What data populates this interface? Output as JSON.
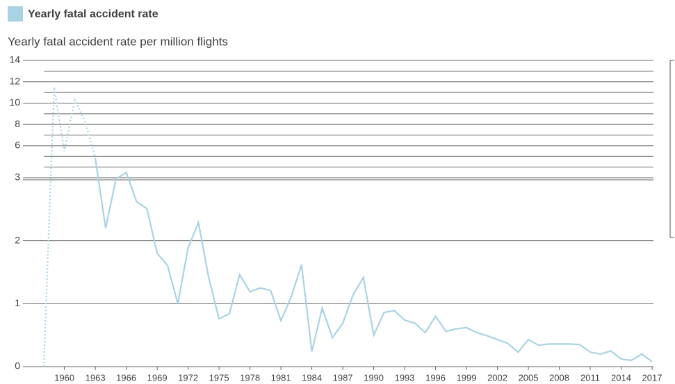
{
  "chart_data": {
    "type": "line",
    "legend_title": "Yearly fatal accident rate",
    "ylabel": "Yearly fatal accident rate per million flights",
    "x": [
      1958,
      1959,
      1960,
      1961,
      1962,
      1963,
      1964,
      1965,
      1966,
      1967,
      1968,
      1969,
      1970,
      1971,
      1972,
      1973,
      1974,
      1975,
      1976,
      1977,
      1978,
      1979,
      1980,
      1981,
      1982,
      1983,
      1984,
      1985,
      1986,
      1987,
      1988,
      1989,
      1990,
      1991,
      1992,
      1993,
      1994,
      1995,
      1996,
      1997,
      1998,
      1999,
      2000,
      2001,
      2002,
      2003,
      2004,
      2005,
      2006,
      2007,
      2008,
      2009,
      2010,
      2011,
      2012,
      2013,
      2014,
      2015,
      2016,
      2017
    ],
    "series": [
      {
        "name": "Yearly fatal accident rate",
        "color": "#a9d3e3",
        "values": [
          0,
          11.5,
          5.5,
          10.3,
          8.3,
          4.8,
          2.2,
          2.98,
          3.5,
          2.62,
          2.51,
          1.8,
          1.61,
          1.0,
          1.89,
          2.29,
          1.41,
          0.76,
          0.84,
          1.46,
          1.19,
          1.25,
          1.21,
          0.73,
          1.11,
          1.62,
          0.24,
          0.93,
          0.46,
          0.69,
          1.14,
          1.42,
          0.5,
          0.86,
          0.89,
          0.74,
          0.69,
          0.54,
          0.8,
          0.56,
          0.6,
          0.62,
          0.54,
          0.49,
          0.43,
          0.37,
          0.23,
          0.43,
          0.34,
          0.36,
          0.36,
          0.36,
          0.35,
          0.23,
          0.2,
          0.25,
          0.12,
          0.1,
          0.2,
          0.08
        ]
      }
    ],
    "dotted_until": 1963,
    "xlim": [
      1958,
      2017
    ],
    "xticks": [
      1960,
      1963,
      1966,
      1969,
      1972,
      1975,
      1978,
      1981,
      1984,
      1987,
      1990,
      1993,
      1996,
      1999,
      2002,
      2005,
      2008,
      2011,
      2014,
      2017
    ],
    "ylim": [
      0,
      14
    ],
    "ybreak": 3,
    "yticks": [
      0,
      1,
      2,
      3,
      6,
      8,
      10,
      12,
      14
    ],
    "yminor": [
      4,
      5,
      7,
      9,
      11,
      13
    ],
    "grid": true
  }
}
